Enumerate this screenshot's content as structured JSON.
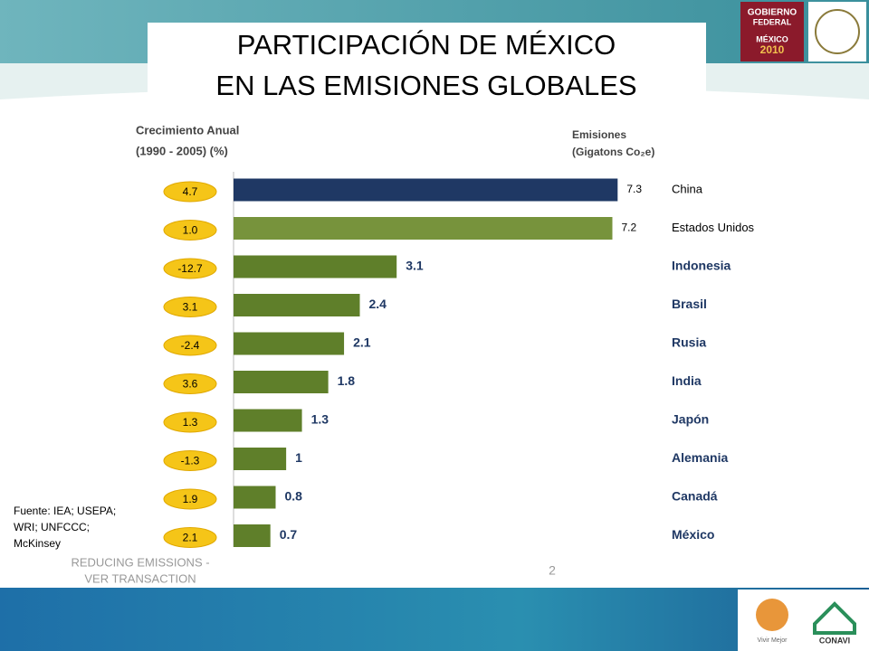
{
  "header": {
    "title_lines": [
      "PARTICIPACIÓN DE MÉXICO",
      "EN LAS EMISIONES GLOBALES"
    ],
    "logo_top": [
      "GOBIERNO",
      "FEDERAL"
    ],
    "logo_year": [
      "MÉXICO",
      "2010"
    ]
  },
  "chart_data": {
    "type": "bar",
    "orientation": "horizontal",
    "left_title": [
      "Crecimiento Anual",
      "(1990 - 2005) (%)"
    ],
    "right_title": [
      "Emisiones",
      "(Gigatons Co₂e)"
    ],
    "categories": [
      "China",
      "Estados Unidos",
      "Indonesia",
      "Brasil",
      "Rusia",
      "India",
      "Japón",
      "Alemania",
      "Canadá",
      "México"
    ],
    "values": [
      7.3,
      7.2,
      3.1,
      2.4,
      2.1,
      1.8,
      1.3,
      1,
      0.8,
      0.7
    ],
    "colors": [
      "#1f3864",
      "#77933c",
      "#5f7f2a",
      "#5f7f2a",
      "#5f7f2a",
      "#5f7f2a",
      "#5f7f2a",
      "#5f7f2a",
      "#5f7f2a",
      "#5f7f2a"
    ],
    "growth": [
      4.7,
      1.0,
      -12.7,
      3.1,
      -2.4,
      3.6,
      1.3,
      -1.3,
      1.9,
      2.1
    ],
    "growth_labels": [
      "4.7",
      "1.0",
      "-12.7",
      "3.1",
      "-2.4",
      "3.6",
      "1.3",
      "-1.3",
      "1.9",
      "2.1"
    ],
    "growth_color": "#f5c518",
    "xlim": [
      0,
      8
    ]
  },
  "footer": {
    "source": [
      "Fuente: IEA; USEPA;",
      "WRI; UNFCCC;",
      "McKinsey"
    ],
    "caption": [
      "REDUCING EMISSIONS -",
      "VER TRANSACTION"
    ],
    "page": "2",
    "logo_left": "Vivir Mejor",
    "logo_right": "CONAVI"
  }
}
